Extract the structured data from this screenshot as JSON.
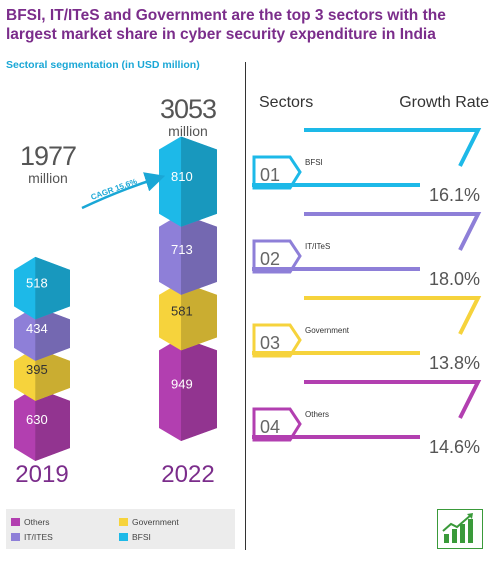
{
  "title": "BFSI, IT/ITeS and Government are the top 3 sectors with the largest market share in cyber security expenditure in India",
  "subtitle": "Sectoral segmentation (in USD million)",
  "cagr_label": "CAGR 15.6%",
  "unit_label": "million",
  "sectors_header": "Sectors",
  "growth_header": "Growth Rate",
  "chart_data": {
    "type": "bar",
    "stacked": true,
    "categories": [
      "2019",
      "2022"
    ],
    "totals": [
      "1977",
      "3053"
    ],
    "series": [
      {
        "name": "Others",
        "color": "#b23fb0",
        "values": [
          630,
          949
        ]
      },
      {
        "name": "Government",
        "color": "#f6d33c",
        "values": [
          395,
          581
        ]
      },
      {
        "name": "IT/ITES",
        "color": "#8e7fd8",
        "values": [
          434,
          713
        ]
      },
      {
        "name": "BFSI",
        "color": "#1db9e8",
        "values": [
          518,
          810
        ]
      }
    ]
  },
  "sector_rows": [
    {
      "num": "01",
      "name": "BFSI",
      "rate": "16.1%",
      "color": "#1db9e8"
    },
    {
      "num": "02",
      "name": "IT/ITeS",
      "rate": "18.0%",
      "color": "#8e7fd8"
    },
    {
      "num": "03",
      "name": "Government",
      "rate": "13.8%",
      "color": "#f6d33c"
    },
    {
      "num": "04",
      "name": "Others",
      "rate": "14.6%",
      "color": "#b23fb0"
    }
  ],
  "legend": [
    {
      "label": "Others",
      "color": "#b23fb0"
    },
    {
      "label": "Government",
      "color": "#f6d33c"
    },
    {
      "label": "IT/ITES",
      "color": "#8e7fd8"
    },
    {
      "label": "BFSI",
      "color": "#1db9e8"
    }
  ],
  "icon": "growth-chart-icon"
}
